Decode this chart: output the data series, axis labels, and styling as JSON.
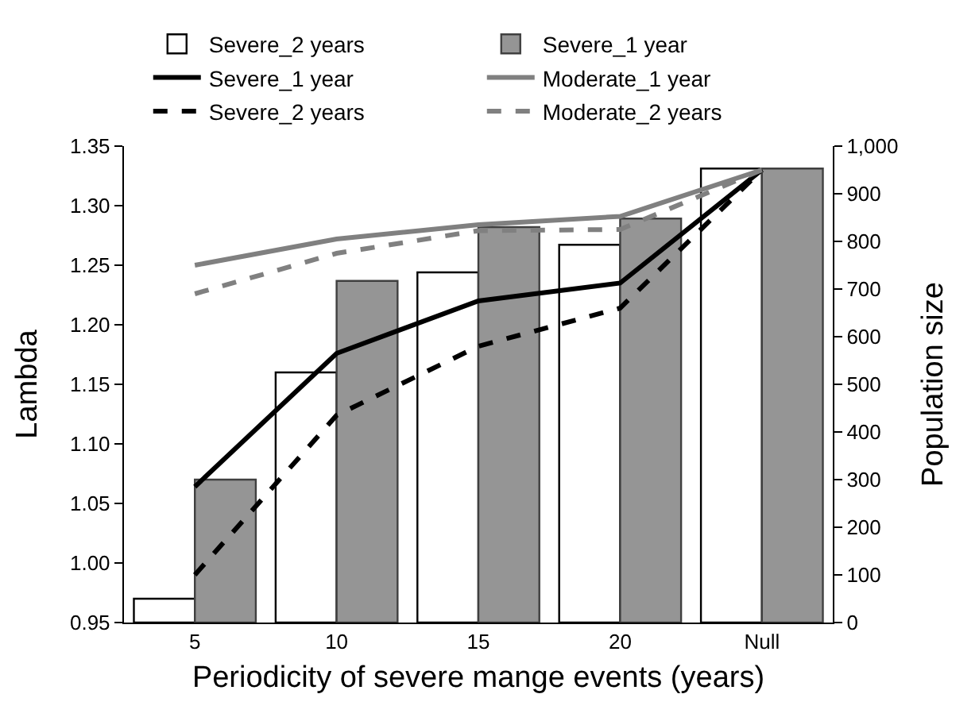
{
  "chart_data": {
    "type": "bar",
    "xlabel": "Periodicity of severe mange events (years)",
    "ylabel": "Lambda",
    "y2label": "Population size",
    "categories": [
      "5",
      "10",
      "15",
      "20",
      "Null"
    ],
    "series": [
      {
        "name": "Severe_2 years",
        "axis": "y2",
        "color": "#ffffff",
        "values": [
          50,
          525,
          735,
          793,
          953
        ]
      },
      {
        "name": "Severe_1 year",
        "axis": "y2",
        "color": "#959595",
        "values": [
          300,
          717,
          830,
          848,
          953
        ]
      },
      {
        "name": "Severe_1 year",
        "type": "line",
        "axis": "y",
        "color": "#000000",
        "line_style": "solid",
        "values": [
          1.064,
          1.176,
          1.22,
          1.235,
          1.33
        ]
      },
      {
        "name": "Moderate_1 year",
        "type": "line",
        "axis": "y",
        "color": "#808080",
        "line_style": "solid",
        "values": [
          1.25,
          1.272,
          1.284,
          1.291,
          1.33
        ]
      },
      {
        "name": "Severe_2 years",
        "type": "line",
        "axis": "y",
        "color": "#000000",
        "line_style": "dashed",
        "values": [
          0.99,
          1.124,
          1.182,
          1.214,
          1.33
        ]
      },
      {
        "name": "Moderate_2 years",
        "type": "line",
        "axis": "y",
        "color": "#808080",
        "line_style": "dashed",
        "values": [
          1.226,
          1.26,
          1.279,
          1.28,
          1.33
        ]
      }
    ],
    "ylim": [
      0.95,
      1.35
    ],
    "yticks": [
      0.95,
      {
        "value": 1,
        "label": "1.00"
      },
      1.05,
      {
        "value": 1.1,
        "label": "1.10"
      },
      1.15,
      {
        "value": 1.2,
        "label": "1.20"
      },
      1.25,
      {
        "value": 1.3,
        "label": "1.30"
      },
      1.35
    ],
    "y2lim": [
      0,
      1000
    ],
    "y2ticks": [
      0,
      100,
      200,
      300,
      400,
      500,
      600,
      700,
      800,
      900,
      {
        "value": 1000,
        "label": "1,000"
      }
    ],
    "legend": "top",
    "marker": "none"
  }
}
